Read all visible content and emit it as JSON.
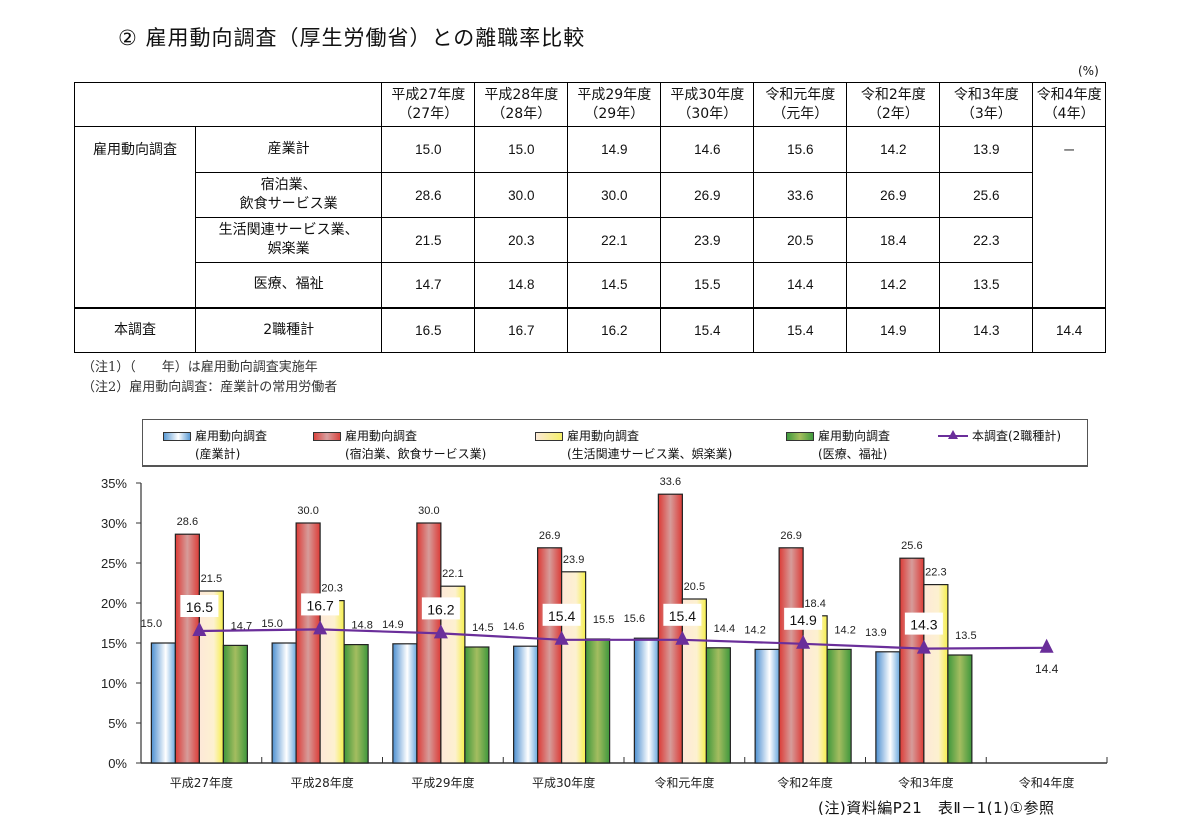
{
  "title": "② 雇用動向調査（厚生労働省）との離職率比較",
  "unit": "(%)",
  "table": {
    "columns": [
      {
        "label": "平成27年度",
        "sub": "（27年）"
      },
      {
        "label": "平成28年度",
        "sub": "（28年）"
      },
      {
        "label": "平成29年度",
        "sub": "（29年）"
      },
      {
        "label": "平成30年度",
        "sub": "（30年）"
      },
      {
        "label": "令和元年度",
        "sub": "（元年）"
      },
      {
        "label": "令和2年度",
        "sub": "（2年）"
      },
      {
        "label": "令和3年度",
        "sub": "（3年）"
      },
      {
        "label": "令和4年度",
        "sub": "（4年）"
      }
    ],
    "group_a": "雇用動向調査",
    "group_b": "本調査",
    "rows": [
      {
        "label1": "産業計",
        "label2": "",
        "values": [
          "15.0",
          "15.0",
          "14.9",
          "14.6",
          "15.6",
          "14.2",
          "13.9"
        ]
      },
      {
        "label1": "宿泊業、",
        "label2": "飲食サービス業",
        "values": [
          "28.6",
          "30.0",
          "30.0",
          "26.9",
          "33.6",
          "26.9",
          "25.6"
        ]
      },
      {
        "label1": "生活関連サービス業、",
        "label2": "娯楽業",
        "values": [
          "21.5",
          "20.3",
          "22.1",
          "23.9",
          "20.5",
          "18.4",
          "22.3"
        ]
      },
      {
        "label1": "医療、福祉",
        "label2": "",
        "values": [
          "14.7",
          "14.8",
          "14.5",
          "15.5",
          "14.4",
          "14.2",
          "13.5"
        ]
      }
    ],
    "r4_merged": "－",
    "survey_row": {
      "label": "2職種計",
      "values": [
        "16.5",
        "16.7",
        "16.2",
        "15.4",
        "15.4",
        "14.9",
        "14.3",
        "14.4"
      ]
    }
  },
  "notes": [
    "（注1）（　　年）は雇用動向調査実施年",
    "（注2）雇用動向調査：産業計の常用労働者"
  ],
  "legend": [
    {
      "line1": "雇用動向調査",
      "line2": "(産業計)"
    },
    {
      "line1": "雇用動向調査",
      "line2": "(宿泊業、飲食サービス業)"
    },
    {
      "line1": "雇用動向調査",
      "line2": "(生活関連サービス業、娯楽業)"
    },
    {
      "line1": "雇用動向調査",
      "line2": "(医療、福祉)"
    },
    {
      "line1": "本調査(2職種計)",
      "line2": ""
    }
  ],
  "footnote": "(注)資料編P21　表Ⅱ－1(1)①参照",
  "colors": {
    "blue": "#5b9bd5",
    "red": "#d9443f",
    "yellow": "#f5e85a",
    "green": "#4e9a44",
    "line": "#6a2e9a"
  },
  "chart_data": {
    "type": "bar",
    "title": "",
    "xlabel": "",
    "ylabel": "",
    "ylim": [
      0,
      35
    ],
    "yticks": [
      "0%",
      "5%",
      "10%",
      "15%",
      "20%",
      "25%",
      "30%",
      "35%"
    ],
    "categories": [
      "平成27年度",
      "平成28年度",
      "平成29年度",
      "平成30年度",
      "令和元年度",
      "令和2年度",
      "令和3年度",
      "令和4年度"
    ],
    "series": [
      {
        "name": "雇用動向調査(産業計)",
        "type": "bar",
        "values": [
          15.0,
          15.0,
          14.9,
          14.6,
          15.6,
          14.2,
          13.9,
          null
        ]
      },
      {
        "name": "雇用動向調査(宿泊業、飲食サービス業)",
        "type": "bar",
        "values": [
          28.6,
          30.0,
          30.0,
          26.9,
          33.6,
          26.9,
          25.6,
          null
        ]
      },
      {
        "name": "雇用動向調査(生活関連サービス業、娯楽業)",
        "type": "bar",
        "values": [
          21.5,
          20.3,
          22.1,
          23.9,
          20.5,
          18.4,
          22.3,
          null
        ]
      },
      {
        "name": "雇用動向調査(医療、福祉)",
        "type": "bar",
        "values": [
          14.7,
          14.8,
          14.5,
          15.5,
          14.4,
          14.2,
          13.5,
          null
        ]
      },
      {
        "name": "本調査(2職種計)",
        "type": "line",
        "values": [
          16.5,
          16.7,
          16.2,
          15.4,
          15.4,
          14.9,
          14.3,
          14.4
        ]
      }
    ],
    "legend_position": "top",
    "grid": false
  }
}
